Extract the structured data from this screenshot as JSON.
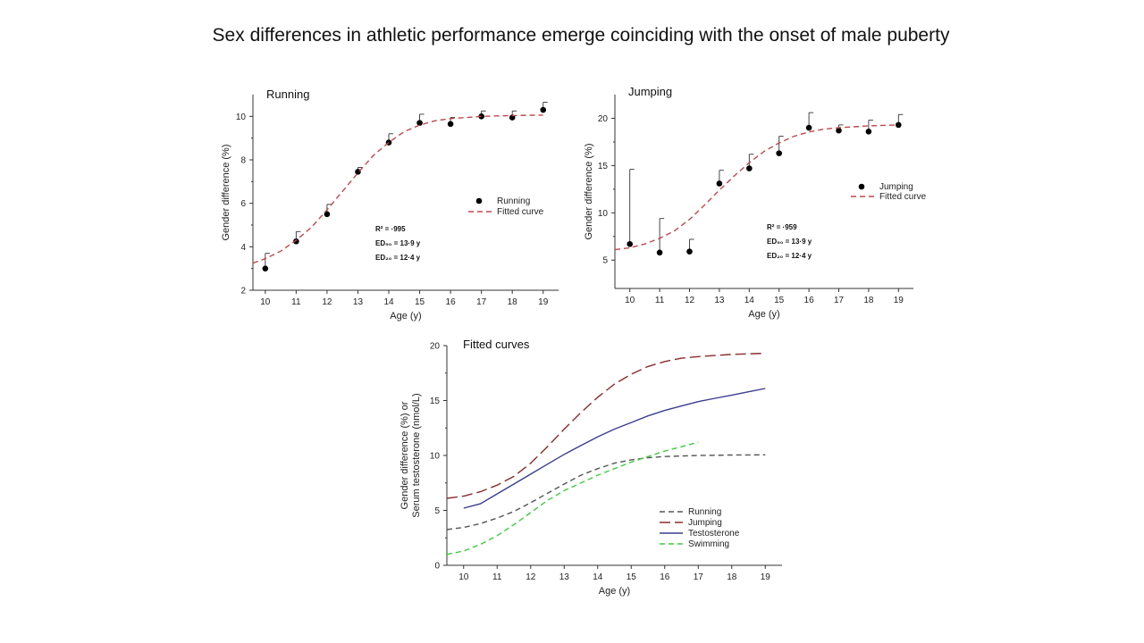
{
  "title": "Sex differences in athletic performance emerge coinciding with the onset of male puberty",
  "chart_data": [
    {
      "type": "scatter",
      "title": "Running",
      "xlabel": "Age (y)",
      "ylabel": "Gender difference (%)",
      "xlim": [
        9.6,
        19.5
      ],
      "ylim": [
        2,
        11
      ],
      "xticks": [
        10,
        11,
        12,
        13,
        14,
        15,
        16,
        17,
        18,
        19
      ],
      "yticks": [
        2,
        4,
        6,
        8,
        10
      ],
      "series": [
        {
          "name": "Running",
          "style": "points",
          "x": [
            10,
            11,
            12,
            13,
            14,
            15,
            16,
            17,
            18,
            19
          ],
          "y": [
            3.0,
            4.25,
            5.5,
            7.45,
            8.8,
            9.7,
            9.65,
            10.0,
            9.95,
            10.3
          ],
          "error_upper": [
            0.7,
            0.45,
            0.45,
            0.2,
            0.4,
            0.4,
            0.3,
            0.25,
            0.3,
            0.35
          ]
        },
        {
          "name": "Fitted curve",
          "style": "dashed",
          "color": "#c2474a",
          "x": [
            9.6,
            10,
            10.5,
            11,
            11.5,
            12,
            12.5,
            13,
            13.5,
            14,
            14.5,
            15,
            15.5,
            16,
            16.5,
            17,
            17.5,
            18,
            18.5,
            19
          ],
          "y": [
            3.25,
            3.45,
            3.8,
            4.3,
            4.9,
            5.7,
            6.55,
            7.4,
            8.2,
            8.8,
            9.3,
            9.6,
            9.8,
            9.9,
            9.95,
            10.0,
            10.02,
            10.04,
            10.05,
            10.06
          ]
        }
      ],
      "annotations": [
        {
          "label": "R² = ·995"
        },
        {
          "label": "ED₅₀ = 13·9 y"
        },
        {
          "label": "ED₂₀ = 12·4 y"
        }
      ],
      "legend": "right"
    },
    {
      "type": "scatter",
      "title": "Jumping",
      "xlabel": "Age (y)",
      "ylabel": "Gender difference (%)",
      "xlim": [
        9.5,
        19.5
      ],
      "ylim": [
        2,
        22.5
      ],
      "xticks": [
        10,
        11,
        12,
        13,
        14,
        15,
        16,
        17,
        18,
        19
      ],
      "yticks": [
        5,
        10,
        15,
        20
      ],
      "series": [
        {
          "name": "Jumping",
          "style": "points",
          "x": [
            10,
            11,
            12,
            13,
            14,
            15,
            16,
            17,
            18,
            19
          ],
          "y": [
            6.7,
            5.8,
            5.9,
            13.1,
            14.7,
            16.3,
            19.0,
            18.7,
            18.6,
            19.3
          ],
          "error_upper": [
            7.9,
            3.6,
            1.3,
            1.4,
            1.5,
            1.8,
            1.6,
            0.6,
            1.2,
            1.1
          ]
        },
        {
          "name": "Fitted curve",
          "style": "dashed",
          "color": "#c2474a",
          "x": [
            9.5,
            10,
            10.5,
            11,
            11.5,
            12,
            12.5,
            13,
            13.5,
            14,
            14.5,
            15,
            15.5,
            16,
            16.5,
            17,
            17.5,
            18,
            18.5,
            19
          ],
          "y": [
            6.1,
            6.3,
            6.7,
            7.3,
            8.1,
            9.3,
            10.8,
            12.4,
            13.9,
            15.3,
            16.5,
            17.4,
            18.1,
            18.55,
            18.85,
            19.0,
            19.1,
            19.2,
            19.25,
            19.3
          ]
        }
      ],
      "annotations": [
        {
          "label": "R² = ·959"
        },
        {
          "label": "ED₅₀ = 13·9 y"
        },
        {
          "label": "ED₂₀ = 12·4 y"
        }
      ],
      "legend": "right"
    },
    {
      "type": "line",
      "title": "Fitted curves",
      "xlabel": "Age (y)",
      "ylabel": [
        "Gender difference (%) or",
        "Serum  testosterone (nmol/L)"
      ],
      "xlim": [
        9.5,
        19.5
      ],
      "ylim": [
        0,
        20
      ],
      "xticks": [
        10,
        11,
        12,
        13,
        14,
        15,
        16,
        17,
        18,
        19
      ],
      "yticks": [
        0,
        5,
        10,
        15,
        20
      ],
      "series": [
        {
          "name": "Running",
          "style": "dashed",
          "color": "#555555",
          "x": [
            9.5,
            10,
            10.5,
            11,
            11.5,
            12,
            12.5,
            13,
            13.5,
            14,
            14.5,
            15,
            15.5,
            16,
            16.5,
            17,
            17.5,
            18,
            18.5,
            19
          ],
          "y": [
            3.25,
            3.45,
            3.8,
            4.3,
            4.9,
            5.7,
            6.55,
            7.4,
            8.2,
            8.8,
            9.3,
            9.6,
            9.8,
            9.9,
            9.95,
            10.0,
            10.02,
            10.04,
            10.05,
            10.06
          ]
        },
        {
          "name": "Jumping",
          "style": "long-dashed",
          "color": "#8b2b2b",
          "x": [
            9.5,
            10,
            10.5,
            11,
            11.5,
            12,
            12.5,
            13,
            13.5,
            14,
            14.5,
            15,
            15.5,
            16,
            16.5,
            17,
            17.5,
            18,
            18.5,
            19
          ],
          "y": [
            6.1,
            6.3,
            6.7,
            7.3,
            8.1,
            9.3,
            10.8,
            12.4,
            13.9,
            15.3,
            16.5,
            17.4,
            18.1,
            18.55,
            18.85,
            19.0,
            19.1,
            19.2,
            19.25,
            19.3
          ]
        },
        {
          "name": "Testosterone",
          "style": "solid",
          "color": "#3b3d8f",
          "x": [
            10,
            10.5,
            11,
            11.5,
            12,
            12.5,
            13,
            13.5,
            14,
            14.5,
            15,
            15.5,
            16,
            16.5,
            17,
            17.5,
            18,
            18.5,
            19
          ],
          "y": [
            5.2,
            5.6,
            6.5,
            7.4,
            8.3,
            9.2,
            10.1,
            10.9,
            11.7,
            12.4,
            13.0,
            13.6,
            14.1,
            14.5,
            14.9,
            15.2,
            15.5,
            15.8,
            16.1
          ]
        },
        {
          "name": "Swimming",
          "style": "dashed",
          "color": "#3fcc3f",
          "x": [
            9.5,
            10,
            10.5,
            11,
            11.5,
            12,
            12.5,
            13,
            13.5,
            14,
            14.5,
            15,
            15.5,
            16,
            16.5,
            17
          ],
          "y": [
            1.0,
            1.3,
            1.9,
            2.7,
            3.7,
            4.8,
            5.9,
            6.8,
            7.5,
            8.2,
            8.8,
            9.4,
            9.9,
            10.4,
            10.8,
            11.2
          ]
        }
      ],
      "legend": "bottom-right"
    }
  ]
}
